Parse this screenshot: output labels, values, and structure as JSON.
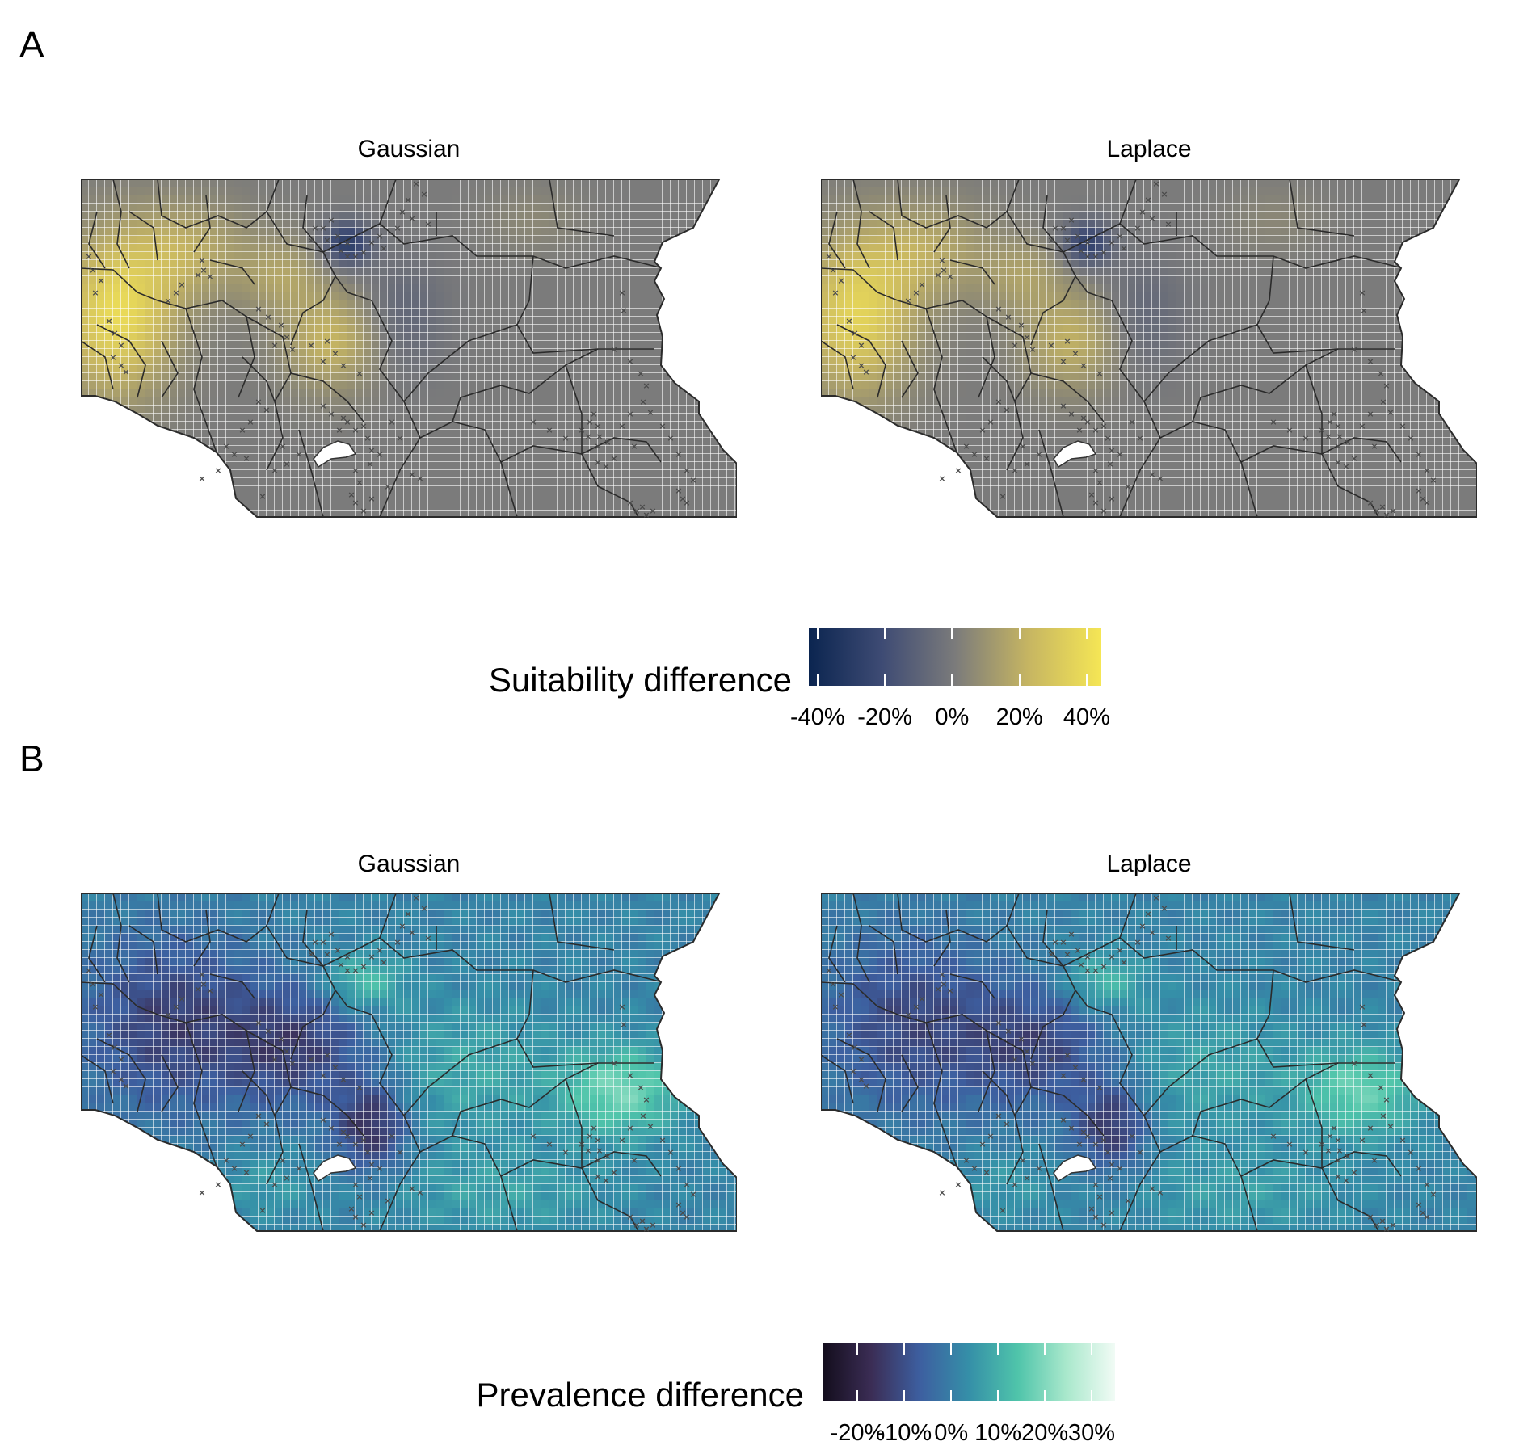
{
  "panels": [
    {
      "letter": "A",
      "facets": [
        {
          "title": "Gaussian"
        },
        {
          "title": "Laplace"
        }
      ],
      "legend": {
        "title": "Suitability difference",
        "colors": [
          "#0b2550",
          "#3e4b74",
          "#7b7b7b",
          "#c6b562",
          "#f5e655"
        ],
        "ticks": [
          "-40%",
          "-20%",
          "0%",
          "20%",
          "40%"
        ]
      }
    },
    {
      "letter": "B",
      "facets": [
        {
          "title": "Gaussian"
        },
        {
          "title": "Laplace"
        }
      ],
      "legend": {
        "title": "Prevalence difference",
        "colors": [
          "#130d1c",
          "#3b2d55",
          "#3d5fa0",
          "#358fa8",
          "#4fc4aa",
          "#a9e8cc",
          "#f1fbf5"
        ],
        "ticks": [
          "-20%",
          "-10%",
          "0%",
          "10%",
          "20%",
          "30%"
        ]
      }
    }
  ]
}
